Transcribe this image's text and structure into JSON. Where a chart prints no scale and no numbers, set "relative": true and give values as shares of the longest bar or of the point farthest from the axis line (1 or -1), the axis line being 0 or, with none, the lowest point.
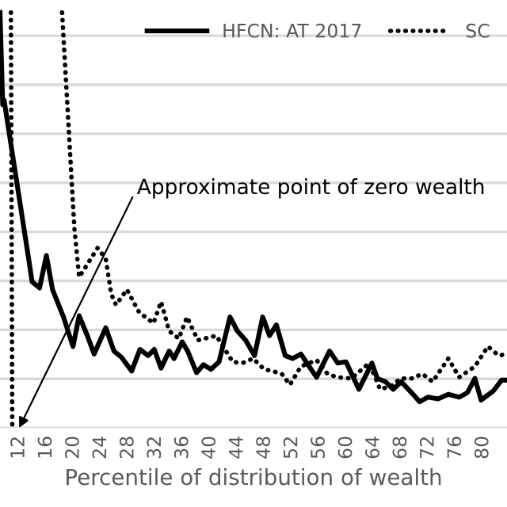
{
  "chart_data": {
    "type": "line",
    "relative": true,
    "xlabel": "Percentile of distribution of wealth",
    "xlim": [
      9.2,
      83.5
    ],
    "xticks": [
      12,
      16,
      20,
      24,
      28,
      32,
      36,
      40,
      44,
      48,
      52,
      56,
      60,
      64,
      68,
      72,
      76,
      80
    ],
    "tick_labels": "x",
    "grid": "y",
    "legend": "top right",
    "marker": "none",
    "annotations": [
      {
        "text": "Approximate point of zero wealth",
        "x": 12,
        "y": 0
      }
    ],
    "series": [
      {
        "name": "HFCN: AT 2017",
        "color": "#000000",
        "line_style": "solid",
        "x": [
          9.2,
          9.6,
          9.8,
          13.4,
          13.9,
          15.0,
          16.0,
          16.9,
          18.5,
          19.9,
          20.8,
          22.0,
          23.0,
          24.7,
          25.9,
          27.0,
          28.5,
          29.7,
          30.9,
          31.8,
          32.8,
          34.0,
          34.7,
          35.9,
          36.7,
          38.0,
          39.0,
          40.1,
          41.3,
          42.9,
          44.0,
          45.2,
          46.5,
          47.7,
          48.7,
          49.7,
          51.0,
          52.1,
          53.3,
          54.5,
          55.6,
          57.5,
          58.7,
          59.9,
          61.8,
          63.7,
          64.5,
          65.7,
          66.8,
          68.0,
          69.5,
          70.7,
          71.9,
          73.4,
          74.9,
          76.5,
          77.7,
          78.8,
          79.7,
          81.5,
          82.7,
          83.5
        ],
        "values": [
          1,
          0.778,
          0.789,
          0.407,
          0.352,
          0.337,
          0.415,
          0.333,
          0.267,
          0.196,
          0.27,
          0.222,
          0.178,
          0.241,
          0.185,
          0.17,
          0.137,
          0.189,
          0.174,
          0.189,
          0.144,
          0.185,
          0.167,
          0.207,
          0.185,
          0.133,
          0.152,
          0.141,
          0.159,
          0.267,
          0.233,
          0.211,
          0.174,
          0.267,
          0.222,
          0.248,
          0.174,
          0.167,
          0.178,
          0.148,
          0.122,
          0.185,
          0.156,
          0.159,
          0.093,
          0.156,
          0.119,
          0.111,
          0.093,
          0.111,
          0.085,
          0.063,
          0.074,
          0.07,
          0.081,
          0.074,
          0.085,
          0.119,
          0.067,
          0.089,
          0.115,
          0.115
        ]
      },
      {
        "name": "SC",
        "color": "#000000",
        "line_style": "dotted",
        "x": [
          10.8,
          11.0,
          11.3,
          18.3,
          20.1,
          20.8,
          23.5,
          24.7,
          25.5,
          26.2,
          27.8,
          29.6,
          31.7,
          32.8,
          34.0,
          35.4,
          36.6,
          38.2,
          40.9,
          43.3,
          44.7,
          46.3,
          47.9,
          49.1,
          50.5,
          51.7,
          53.3,
          55.6,
          57.2,
          58.6,
          60.7,
          63.3,
          64.9,
          66.5,
          67.9,
          69.5,
          71.1,
          72.6,
          74.9,
          76.5,
          78.8,
          80.7,
          82.3,
          83.5
        ],
        "values": [
          1,
          0.007,
          null,
          1,
          0.481,
          0.363,
          0.433,
          0.407,
          0.322,
          0.296,
          0.333,
          0.278,
          0.252,
          0.304,
          0.233,
          0.215,
          0.267,
          0.211,
          0.222,
          0.159,
          0.156,
          0.167,
          0.141,
          0.137,
          0.13,
          0.104,
          0.148,
          0.163,
          0.13,
          0.122,
          0.119,
          0.156,
          0.093,
          0.1,
          0.119,
          0.119,
          0.13,
          0.111,
          0.167,
          0.122,
          0.148,
          0.196,
          0.174,
          0.178
        ]
      }
    ]
  }
}
